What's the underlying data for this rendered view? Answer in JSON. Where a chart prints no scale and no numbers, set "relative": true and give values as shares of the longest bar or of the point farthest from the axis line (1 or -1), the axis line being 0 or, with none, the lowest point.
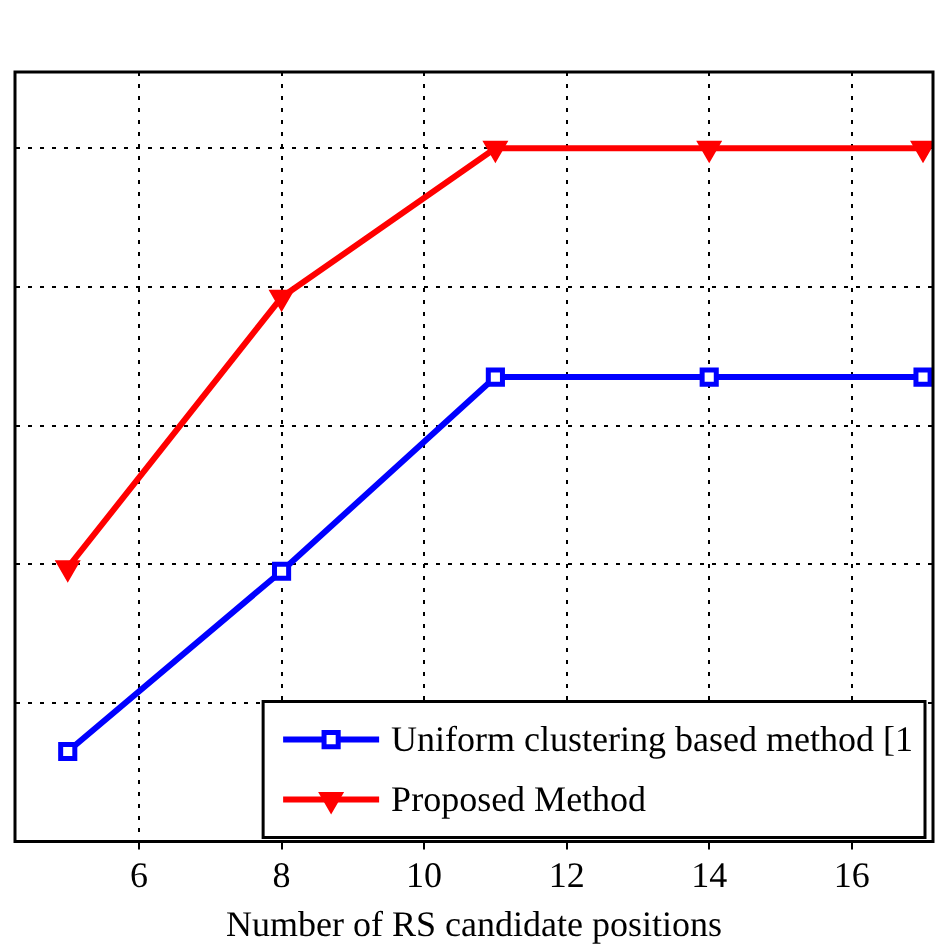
{
  "chart_data": {
    "type": "line",
    "xlabel": "Number of RS candidate positions",
    "x": [
      5,
      8,
      11,
      14,
      17
    ],
    "xlim": [
      4.26,
      17.14
    ],
    "xticks": [
      6,
      8,
      10,
      12,
      14,
      16
    ],
    "relative": true,
    "grid": true,
    "legend": "bottom right",
    "line_style": "solid",
    "series": [
      {
        "name": "Uniform clustering based method [1",
        "color": "#0000ff",
        "marker": "square",
        "values": [
          0.13,
          0.39,
          0.67,
          0.67,
          0.67
        ]
      },
      {
        "name": "Proposed Method",
        "color": "#ff0000",
        "marker": "triangle",
        "values": [
          0.395,
          0.785,
          1,
          1,
          1
        ]
      }
    ]
  }
}
